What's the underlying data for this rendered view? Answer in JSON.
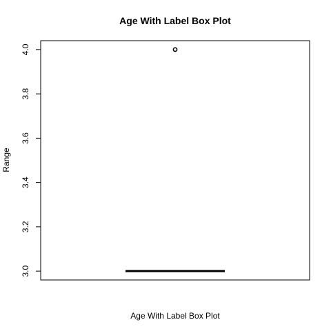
{
  "chart_data": {
    "type": "boxplot",
    "title": "Age With Label Box Plot",
    "xlabel": "Age With Label Box Plot",
    "ylabel": "Range",
    "ylim": [
      2.96,
      4.04
    ],
    "yticks": [
      3.0,
      3.2,
      3.4,
      3.6,
      3.8,
      4.0
    ],
    "ytick_labels": [
      "3.0",
      "3.2",
      "3.4",
      "3.6",
      "3.8",
      "4.0"
    ],
    "box": {
      "min": 3.0,
      "q1": 3.0,
      "median": 3.0,
      "q3": 3.0,
      "max": 3.0
    },
    "outliers": [
      4.0
    ],
    "grid": false
  }
}
